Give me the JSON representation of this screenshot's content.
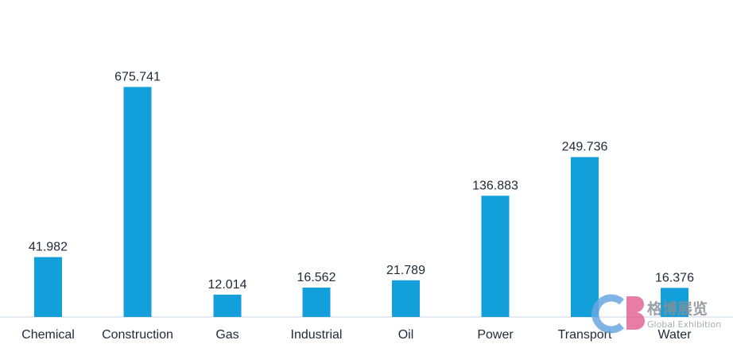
{
  "chart_data": {
    "type": "bar",
    "categories": [
      "Chemical",
      "Construction",
      "Gas",
      "Industrial",
      "Oil",
      "Power",
      "Transport",
      "Water"
    ],
    "values": [
      41.982,
      675.741,
      12.014,
      16.562,
      21.789,
      136.883,
      249.736,
      16.376
    ],
    "value_labels": [
      "41.982",
      "675.741",
      "12.014",
      "16.562",
      "21.789",
      "136.883",
      "249.736",
      "16.376"
    ],
    "bar_color": "#139fd9",
    "axis_color": "#c8d6e0",
    "scale": "symlog",
    "grid": false,
    "legend": "none"
  },
  "watermark": {
    "chinese": "格博展览",
    "english": "Global Exhibition",
    "colors": {
      "c": "#6aa7e0",
      "b": "#e0558a"
    }
  }
}
